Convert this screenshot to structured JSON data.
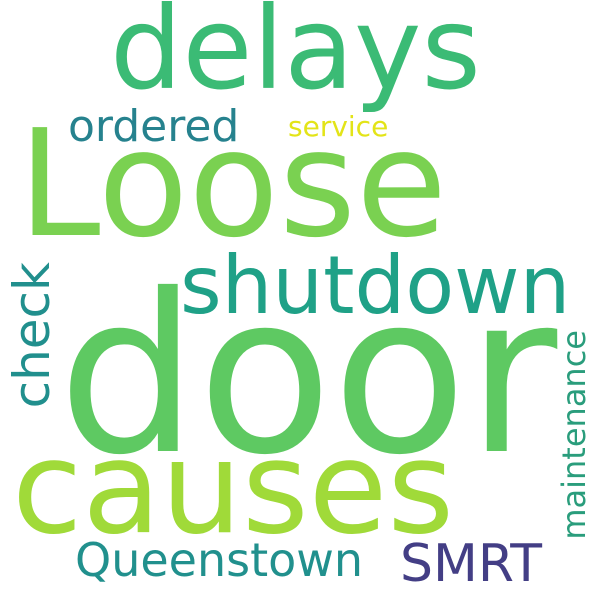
{
  "words": [
    {
      "key": "door",
      "text": "door",
      "color": "#5ec962"
    },
    {
      "key": "loose",
      "text": "Loose",
      "color": "#7ad151"
    },
    {
      "key": "causes",
      "text": "causes",
      "color": "#a0da39"
    },
    {
      "key": "delays",
      "text": "delays",
      "color": "#3bbb75"
    },
    {
      "key": "shutdown",
      "text": "shutdown",
      "color": "#1fa187"
    },
    {
      "key": "ordered",
      "text": "ordered",
      "color": "#26828e"
    },
    {
      "key": "service",
      "text": "service",
      "color": "#e3e418"
    },
    {
      "key": "check",
      "text": "check",
      "color": "#218f8d"
    },
    {
      "key": "queenstown",
      "text": "Queenstown",
      "color": "#21908d"
    },
    {
      "key": "smrt",
      "text": "SMRT",
      "color": "#433e85"
    },
    {
      "key": "maintenance",
      "text": "maintenance",
      "color": "#2a9d7c"
    }
  ]
}
